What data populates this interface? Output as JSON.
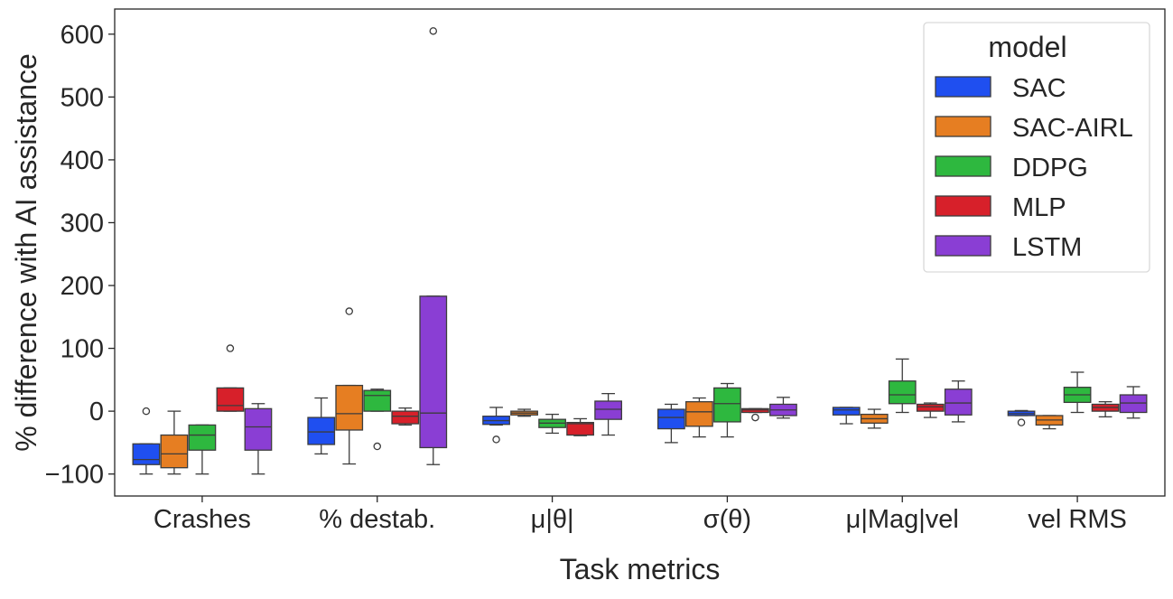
{
  "chart_data": {
    "type": "box",
    "xlabel": "Task metrics",
    "ylabel": "% difference with AI assistance",
    "categories": [
      "Crashes",
      "% destab.",
      "μ|θ|",
      "σ(θ)",
      "μ|Mag|vel",
      "vel RMS"
    ],
    "ylim": [
      -135,
      640
    ],
    "yticks": [
      -100,
      0,
      100,
      200,
      300,
      400,
      500,
      600
    ],
    "ytick_labels": [
      "−100",
      "0",
      "100",
      "200",
      "300",
      "400",
      "500",
      "600"
    ],
    "grid": false,
    "legend": {
      "title": "model",
      "position": "top-right"
    },
    "series": [
      {
        "name": "SAC",
        "color": "#1f4ff0",
        "boxes": [
          {
            "whislo": -100,
            "q1": -85,
            "med": -77,
            "q3": -52,
            "whishi": -52,
            "fliers": [
              0
            ]
          },
          {
            "whislo": -68,
            "q1": -53,
            "med": -33,
            "q3": -10,
            "whishi": 21,
            "fliers": []
          },
          {
            "whislo": -22,
            "q1": -21,
            "med": -15,
            "q3": -8,
            "whishi": 6,
            "fliers": [
              -45
            ]
          },
          {
            "whislo": -50,
            "q1": -28,
            "med": -10,
            "q3": 3,
            "whishi": 11,
            "fliers": []
          },
          {
            "whislo": -20,
            "q1": -6,
            "med": 2,
            "q3": 6,
            "whishi": 6,
            "fliers": []
          },
          {
            "whislo": -7,
            "q1": -7,
            "med": -4,
            "q3": 0,
            "whishi": 1,
            "fliers": [
              -18
            ]
          }
        ]
      },
      {
        "name": "SAC-AIRL",
        "color": "#e67e22",
        "boxes": [
          {
            "whislo": -100,
            "q1": -90,
            "med": -68,
            "q3": -38,
            "whishi": 0,
            "fliers": []
          },
          {
            "whislo": -84,
            "q1": -30,
            "med": -4,
            "q3": 41,
            "whishi": 41,
            "fliers": [
              159
            ]
          },
          {
            "whislo": -8,
            "q1": -6,
            "med": -3,
            "q3": 0,
            "whishi": 3,
            "fliers": []
          },
          {
            "whislo": -41,
            "q1": -24,
            "med": -1,
            "q3": 15,
            "whishi": 21,
            "fliers": []
          },
          {
            "whislo": -27,
            "q1": -19,
            "med": -12,
            "q3": -5,
            "whishi": 3,
            "fliers": []
          },
          {
            "whislo": -28,
            "q1": -22,
            "med": -14,
            "q3": -7,
            "whishi": -7,
            "fliers": []
          }
        ]
      },
      {
        "name": "DDPG",
        "color": "#2eb83f",
        "boxes": [
          {
            "whislo": -100,
            "q1": -62,
            "med": -38,
            "q3": -22,
            "whishi": -22,
            "fliers": []
          },
          {
            "whislo": 0,
            "q1": 0,
            "med": 25,
            "q3": 33,
            "whishi": 35,
            "fliers": [
              -56
            ]
          },
          {
            "whislo": -35,
            "q1": -26,
            "med": -19,
            "q3": -13,
            "whishi": -5,
            "fliers": []
          },
          {
            "whislo": -41,
            "q1": -17,
            "med": 12,
            "q3": 37,
            "whishi": 44,
            "fliers": []
          },
          {
            "whislo": -2,
            "q1": 12,
            "med": 26,
            "q3": 48,
            "whishi": 83,
            "fliers": []
          },
          {
            "whislo": -2,
            "q1": 14,
            "med": 26,
            "q3": 38,
            "whishi": 62,
            "fliers": []
          }
        ]
      },
      {
        "name": "MLP",
        "color": "#d7202a",
        "boxes": [
          {
            "whislo": 0,
            "q1": 0,
            "med": 9,
            "q3": 37,
            "whishi": 37,
            "fliers": [
              100
            ]
          },
          {
            "whislo": -22,
            "q1": -20,
            "med": -8,
            "q3": 0,
            "whishi": 5,
            "fliers": []
          },
          {
            "whislo": -39,
            "q1": -38,
            "med": -20,
            "q3": -18,
            "whishi": -12,
            "fliers": []
          },
          {
            "whislo": -2,
            "q1": -2,
            "med": 2,
            "q3": 4,
            "whishi": 4,
            "fliers": [
              -10
            ]
          },
          {
            "whislo": -10,
            "q1": 0,
            "med": 7,
            "q3": 11,
            "whishi": 13,
            "fliers": []
          },
          {
            "whislo": -9,
            "q1": 0,
            "med": 6,
            "q3": 11,
            "whishi": 15,
            "fliers": []
          }
        ]
      },
      {
        "name": "LSTM",
        "color": "#8a3ed4",
        "boxes": [
          {
            "whislo": -100,
            "q1": -62,
            "med": -25,
            "q3": 4,
            "whishi": 12,
            "fliers": []
          },
          {
            "whislo": -85,
            "q1": -58,
            "med": -3,
            "q3": 183,
            "whishi": 183,
            "fliers": [
              605
            ]
          },
          {
            "whislo": -38,
            "q1": -13,
            "med": 3,
            "q3": 16,
            "whishi": 28,
            "fliers": []
          },
          {
            "whislo": -11,
            "q1": -7,
            "med": 2,
            "q3": 11,
            "whishi": 22,
            "fliers": []
          },
          {
            "whislo": -17,
            "q1": -6,
            "med": 13,
            "q3": 35,
            "whishi": 48,
            "fliers": []
          },
          {
            "whislo": -11,
            "q1": -2,
            "med": 13,
            "q3": 26,
            "whishi": 39,
            "fliers": []
          }
        ]
      }
    ]
  }
}
